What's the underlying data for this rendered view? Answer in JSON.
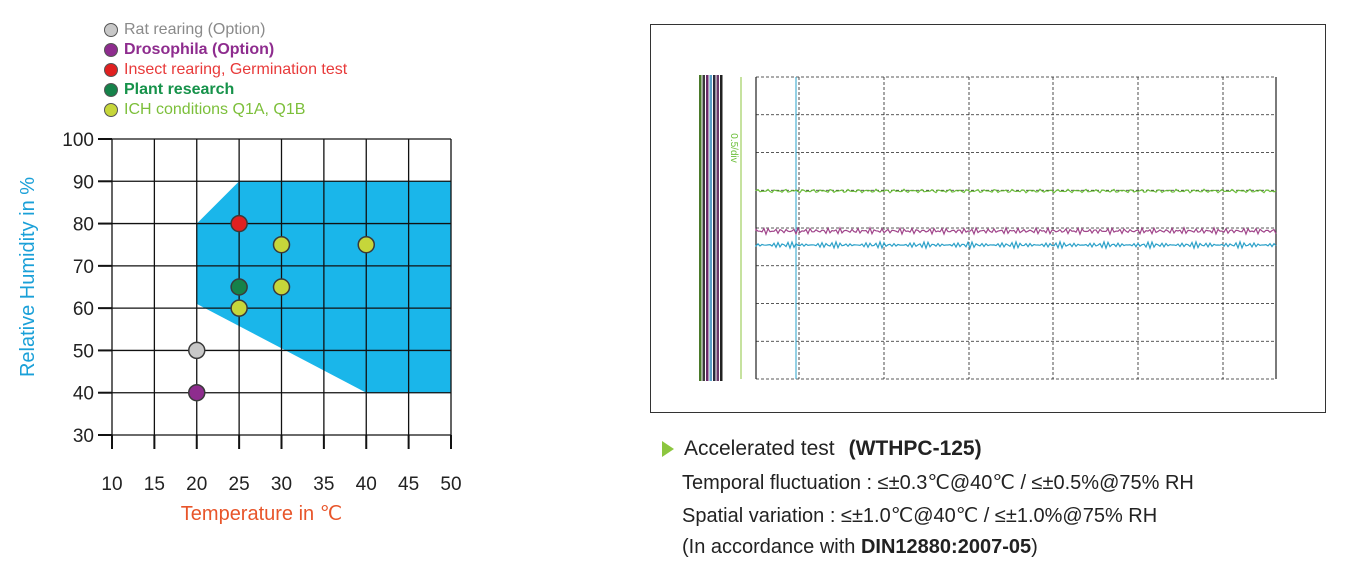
{
  "legend": [
    {
      "label": "Rat rearing (Option)",
      "dot_color": "#c8c8c8",
      "text_color": "#8a8a8a"
    },
    {
      "label": "Drosophila (Option)",
      "dot_color": "#8e2c8e",
      "text_color": "#8e2c8e"
    },
    {
      "label": "Insect rearing, Germination test",
      "dot_color": "#e02020",
      "text_color": "#e83a3a"
    },
    {
      "label": "Plant research",
      "dot_color": "#16824a",
      "text_color": "#16924a"
    },
    {
      "label": "ICH conditions Q1A, Q1B",
      "dot_color": "#c6d63a",
      "text_color": "#7cbf3a"
    }
  ],
  "chart_data": {
    "type": "scatter",
    "xlabel": "Temperature in ℃",
    "ylabel": "Relative Humidity in %",
    "xlim": [
      10,
      50
    ],
    "ylim": [
      30,
      100
    ],
    "x_ticks": [
      "10",
      "15",
      "20",
      "25",
      "30",
      "35",
      "40",
      "45",
      "50"
    ],
    "y_ticks": [
      "100",
      "90",
      "80",
      "70",
      "60",
      "50",
      "40",
      "30"
    ],
    "grid": true,
    "region": {
      "color": "#1ab6ea",
      "points": [
        [
          20,
          80
        ],
        [
          25,
          90
        ],
        [
          50,
          90
        ],
        [
          50,
          40
        ],
        [
          40,
          40
        ],
        [
          20,
          61
        ]
      ]
    },
    "points": [
      {
        "x": 20,
        "y": 50,
        "color": "#c8c8c8"
      },
      {
        "x": 20,
        "y": 40,
        "color": "#8e2c8e"
      },
      {
        "x": 25,
        "y": 80,
        "color": "#e02020"
      },
      {
        "x": 25,
        "y": 65,
        "color": "#16824a"
      },
      {
        "x": 25,
        "y": 60,
        "color": "#c6d63a"
      },
      {
        "x": 30,
        "y": 75,
        "color": "#c6d63a"
      },
      {
        "x": 30,
        "y": 65,
        "color": "#c6d63a"
      },
      {
        "x": 40,
        "y": 75,
        "color": "#c6d63a"
      }
    ],
    "colors": {
      "xlabel": "#e8552a",
      "ylabel": "#1aa0d8",
      "grid": "#111111"
    }
  },
  "recorder": {
    "scale_text": "0.5/div",
    "series_colors": [
      "#6cbf3a",
      "#a0448a",
      "#2aa0c8"
    ]
  },
  "caption": {
    "title": "Accelerated test",
    "model": "(WTHPC-125)",
    "line1": "Temporal fluctuation : ≤±0.3℃@40℃ / ≤±0.5%@75% RH",
    "line2": "Spatial variation : ≤±1.0℃@40℃ / ≤±1.0%@75% RH",
    "line3_prefix": "(In accordance with ",
    "line3_bold": "DIN12880:2007-05",
    "line3_suffix": ")"
  }
}
